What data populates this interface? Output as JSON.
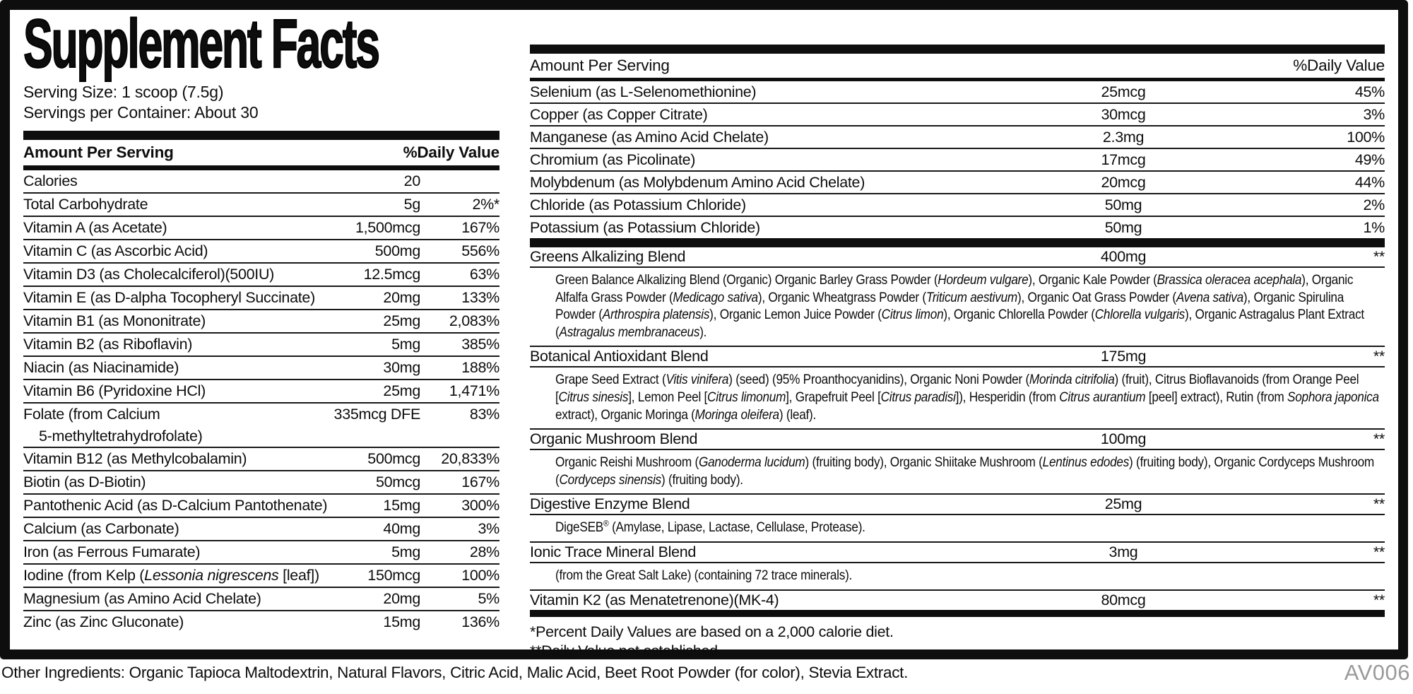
{
  "title": "Supplement Facts",
  "serving_size": "Serving Size: 1 scoop (7.5g)",
  "servings_per_container": "Servings per Container: About 30",
  "table_header": {
    "amount": "Amount Per Serving",
    "dv": "%Daily Value"
  },
  "left_table": {
    "rows": [
      {
        "name": "Calories",
        "amount": "20",
        "dv": ""
      },
      {
        "name": "Total Carbohydrate",
        "amount": "5g",
        "dv": "2%*"
      },
      {
        "name": "Vitamin A (as Acetate)",
        "amount": "1,500mcg",
        "dv": "167%"
      },
      {
        "name": "Vitamin C (as Ascorbic Acid)",
        "amount": "500mg",
        "dv": "556%"
      },
      {
        "name": "Vitamin D3 (as Cholecalciferol)(500IU)",
        "amount": "12.5mcg",
        "dv": "63%"
      },
      {
        "name": "Vitamin E (as D-alpha Tocopheryl Succinate)",
        "amount": "20mg",
        "dv": "133%"
      },
      {
        "name": "Vitamin B1 (as Mononitrate)",
        "amount": "25mg",
        "dv": "2,083%"
      },
      {
        "name": "Vitamin B2 (as Riboflavin)",
        "amount": "5mg",
        "dv": "385%"
      },
      {
        "name": "Niacin (as Niacinamide)",
        "amount": "30mg",
        "dv": "188%"
      },
      {
        "name": "Vitamin B6 (Pyridoxine HCl)",
        "amount": "25mg",
        "dv": "1,471%"
      },
      {
        "name": "Folate (from Calcium",
        "name2": "5-methyltetrahydrofolate)",
        "amount": "335mcg DFE",
        "dv": "83%"
      },
      {
        "name": "Vitamin B12 (as Methylcobalamin)",
        "amount": "500mcg",
        "dv": "20,833%"
      },
      {
        "name": "Biotin (as D-Biotin)",
        "amount": "50mcg",
        "dv": "167%"
      },
      {
        "name": "Pantothenic Acid (as D-Calcium Pantothenate)",
        "amount": "15mg",
        "dv": "300%"
      },
      {
        "name": "Calcium (as Carbonate)",
        "amount": "40mg",
        "dv": "3%"
      },
      {
        "name": "Iron (as Ferrous Fumarate)",
        "amount": "5mg",
        "dv": "28%"
      },
      {
        "name": "Iodine (from Kelp (<i>Lessonia nigrescens</i> [leaf])",
        "amount": "150mcg",
        "dv": "100%"
      },
      {
        "name": "Magnesium (as Amino Acid Chelate)",
        "amount": "20mg",
        "dv": "5%"
      },
      {
        "name": "Zinc (as Zinc Gluconate)",
        "amount": "15mg",
        "dv": "136%"
      }
    ]
  },
  "right_table": {
    "rows": [
      {
        "name": "Selenium (as L-Selenomethionine)",
        "amount": "25mcg",
        "dv": "45%"
      },
      {
        "name": "Copper (as Copper Citrate)",
        "amount": "30mcg",
        "dv": "3%"
      },
      {
        "name": "Manganese (as Amino Acid Chelate)",
        "amount": "2.3mg",
        "dv": "100%"
      },
      {
        "name": "Chromium (as Picolinate)",
        "amount": "17mcg",
        "dv": "49%"
      },
      {
        "name": "Molybdenum (as Molybdenum Amino Acid Chelate)",
        "amount": "20mcg",
        "dv": "44%"
      },
      {
        "name": "Chloride (as Potassium Chloride)",
        "amount": "50mg",
        "dv": "2%"
      },
      {
        "name": "Potassium (as Potassium Chloride)",
        "amount": "50mg",
        "dv": "1%"
      }
    ],
    "blends": [
      {
        "name": "Greens Alkalizing Blend",
        "amount": "400mg",
        "dv": "**",
        "desc": "Green Balance Alkalizing Blend (Organic) Organic Barley Grass Powder (<i>Hordeum vulgare</i>), Organic Kale Powder (<i>Brassica oleracea acephala</i>), Organic Alfalfa Grass Powder (<i>Medicago sativa</i>), Organic Wheatgrass Powder (<i>Triticum aestivum</i>), Organic Oat Grass Powder (<i>Avena sativa</i>), Organic Spirulina Powder (<i>Arthrospira platensis</i>), Organic Lemon Juice Powder (<i>Citrus limon</i>), Organic Chlorella Powder (<i>Chlorella vulgaris</i>), Organic Astragalus Plant Extract (<i>Astragalus membranaceus</i>)."
      },
      {
        "name": "Botanical Antioxidant Blend",
        "amount": "175mg",
        "dv": "**",
        "desc": "Grape Seed Extract (<i>Vitis vinifera</i>) (seed) (95% Proanthocyanidins), Organic Noni Powder (<i>Morinda citrifolia</i>) (fruit), Citrus Bioflavanoids (from Orange Peel [<i>Citrus sinesis</i>], Lemon Peel [<i>Citrus limonum</i>], Grapefruit Peel [<i>Citrus paradisi</i>]), Hesperidin (from <i>Citrus aurantium</i> [peel] extract), Rutin (from <i>Sophora japonica</i> extract), Organic Moringa (<i>Moringa oleifera</i>) (leaf)."
      },
      {
        "name": "Organic Mushroom Blend",
        "amount": "100mg",
        "dv": "**",
        "desc": "Organic Reishi Mushroom (<i>Ganoderma lucidum</i>) (fruiting body), Organic Shiitake Mushroom (<i>Lentinus edodes</i>) (fruiting body), Organic Cordyceps Mushroom (<i>Cordyceps sinensis</i>) (fruiting body)."
      },
      {
        "name": "Digestive Enzyme Blend",
        "amount": "25mg",
        "dv": "**",
        "desc": "DigeSEB<sup>®</sup> (Amylase, Lipase, Lactase, Cellulase, Protease)."
      },
      {
        "name": "Ionic Trace Mineral Blend",
        "amount": "3mg",
        "dv": "**",
        "desc": "(from the Great Salt Lake) (containing 72 trace minerals)."
      },
      {
        "name": "Vitamin K2 (as Menatetrenone)(MK-4)",
        "amount": "80mcg",
        "dv": "**",
        "desc": ""
      }
    ]
  },
  "footnotes": [
    "*Percent Daily Values are based on a 2,000 calorie diet.",
    "**Daily Value not established."
  ],
  "other_ingredients": "Other Ingredients: Organic Tapioca Maltodextrin, Natural Flavors, Citric Acid, Malic Acid, Beet Root Powder (for color), Stevia Extract.",
  "product_code": "AV006"
}
